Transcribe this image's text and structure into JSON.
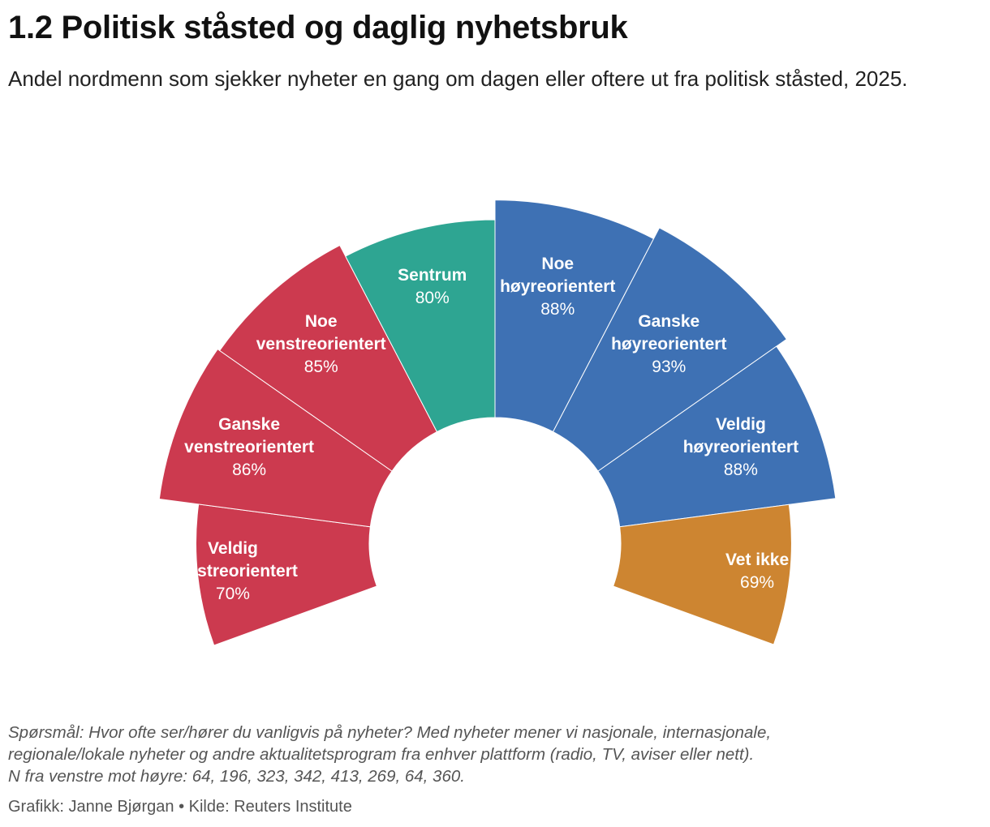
{
  "title": "1.2 Politisk ståsted og daglig nyhetsbruk",
  "subtitle": "Andel nordmenn som sjekker nyheter en gang om dagen eller oftere ut fra politisk ståsted, 2025.",
  "note_lines": [
    "Spørsmål: Hvor ofte ser/hører du vanligvis på nyheter? Med nyheter mener vi nasjonale, internasjonale,",
    "regionale/lokale nyheter og andre aktualitetsprogram fra enhver plattform (radio, TV, aviser eller nett).",
    "N fra venstre mot høyre: 64, 196, 323, 342, 413, 269, 64, 360."
  ],
  "credit": "Grafikk: Janne Bjørgan • Kilde: Reuters Institute",
  "chart_data": {
    "type": "pie",
    "shape": "half-donut",
    "value_unit": "%",
    "categories": [
      "Veldig venstreorientert",
      "Ganske venstreorientert",
      "Noe venstreorientert",
      "Sentrum",
      "Noe høyreorientert",
      "Ganske høyreorientert",
      "Veldig høyreorientert",
      "Vet ikke"
    ],
    "label_lines": [
      [
        "Veldig",
        "venstreorientert"
      ],
      [
        "Ganske",
        "venstreorientert"
      ],
      [
        "Noe",
        "venstreorientert"
      ],
      [
        "Sentrum"
      ],
      [
        "Noe",
        "høyreorientert"
      ],
      [
        "Ganske",
        "høyreorientert"
      ],
      [
        "Veldig",
        "høyreorientert"
      ],
      [
        "Vet ikke"
      ]
    ],
    "values": [
      70,
      86,
      85,
      80,
      88,
      93,
      88,
      69
    ],
    "value_labels": [
      "70%",
      "86%",
      "85%",
      "80%",
      "88%",
      "93%",
      "88%",
      "69%"
    ],
    "colors": [
      "#cc3a4f",
      "#cc3a4f",
      "#cc3a4f",
      "#2ea592",
      "#3e71b4",
      "#3e71b4",
      "#3e71b4",
      "#cd8531"
    ]
  }
}
